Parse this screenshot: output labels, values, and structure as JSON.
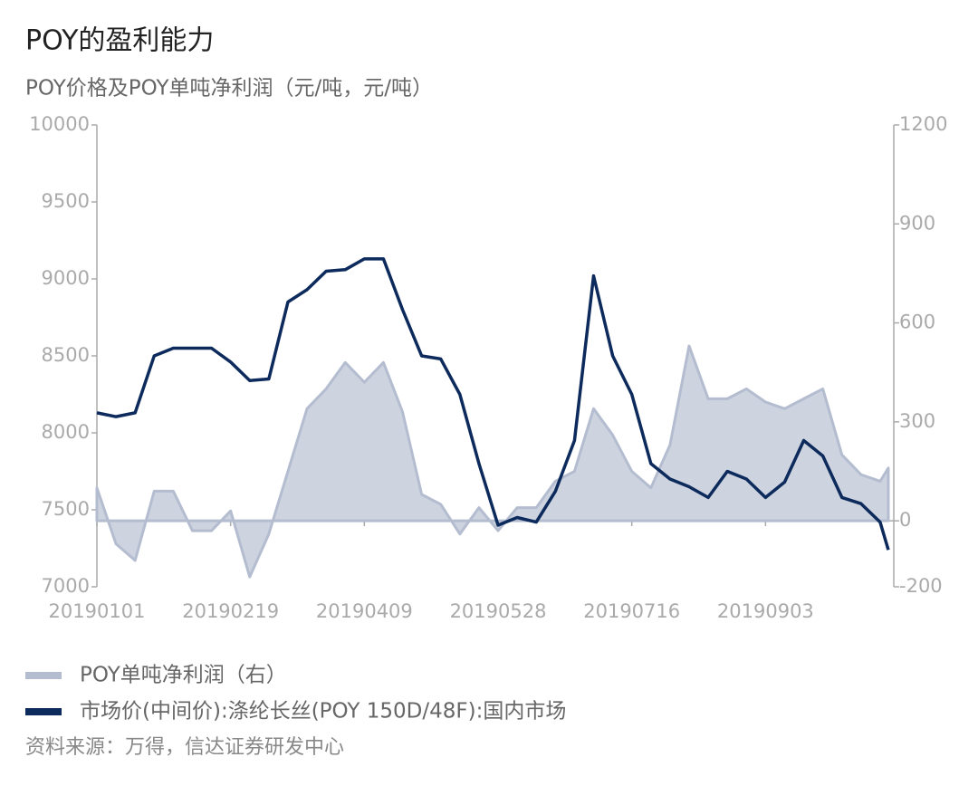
{
  "chart_data": {
    "type": "line",
    "title": "POY的盈利能力",
    "subtitle": "POY价格及POY单吨净利润（元/吨，元/吨）",
    "source": "资料来源：万得，信达证券研发中心",
    "x": [
      "20190101",
      "20190108",
      "20190115",
      "20190122",
      "20190129",
      "20190205",
      "20190212",
      "20190219",
      "20190226",
      "20190305",
      "20190312",
      "20190319",
      "20190326",
      "20190402",
      "20190409",
      "20190416",
      "20190423",
      "20190430",
      "20190507",
      "20190514",
      "20190521",
      "20190528",
      "20190604",
      "20190611",
      "20190618",
      "20190625",
      "20190702",
      "20190709",
      "20190716",
      "20190723",
      "20190730",
      "20190806",
      "20190813",
      "20190820",
      "20190827",
      "20190903",
      "20190910",
      "20190917",
      "20190924",
      "20191001",
      "20191008",
      "20191015",
      "20191018"
    ],
    "xlim": [
      "20190101",
      "20191020"
    ],
    "xticks": [
      "20190101",
      "20190219",
      "20190409",
      "20190528",
      "20190716",
      "20190903"
    ],
    "ylim": [
      7000,
      10000
    ],
    "yticks": [
      7000,
      7500,
      8000,
      8500,
      9000,
      9500,
      10000
    ],
    "y2lim": [
      -200,
      1200
    ],
    "y2ticks": [
      -200,
      0,
      300,
      600,
      900,
      1200
    ],
    "series": [
      {
        "name": "POY单吨净利润（右）",
        "type": "area",
        "axis": "y2",
        "color": "#b4bdd0",
        "values": [
          100,
          -70,
          -120,
          90,
          90,
          -30,
          -30,
          30,
          -170,
          -40,
          150,
          340,
          400,
          480,
          420,
          480,
          330,
          80,
          50,
          -40,
          40,
          -30,
          40,
          40,
          120,
          150,
          340,
          260,
          150,
          100,
          230,
          530,
          370,
          370,
          400,
          360,
          340,
          370,
          400,
          200,
          140,
          120,
          160
        ]
      },
      {
        "name": "市场价(中间价):涤纶长丝(POY 150D/48F):国内市场",
        "type": "line",
        "color": "#0d2a5c",
        "values": [
          8130,
          8105,
          8130,
          8500,
          8550,
          8550,
          8550,
          8460,
          8340,
          8350,
          8850,
          8930,
          9050,
          9060,
          9130,
          9130,
          8800,
          8500,
          8480,
          8250,
          7800,
          7400,
          7450,
          7420,
          7620,
          7950,
          9020,
          8500,
          8250,
          7800,
          7700,
          7650,
          7580,
          7750,
          7700,
          7580,
          7680,
          7950,
          7850,
          7580,
          7540,
          7420,
          7240
        ]
      }
    ]
  }
}
